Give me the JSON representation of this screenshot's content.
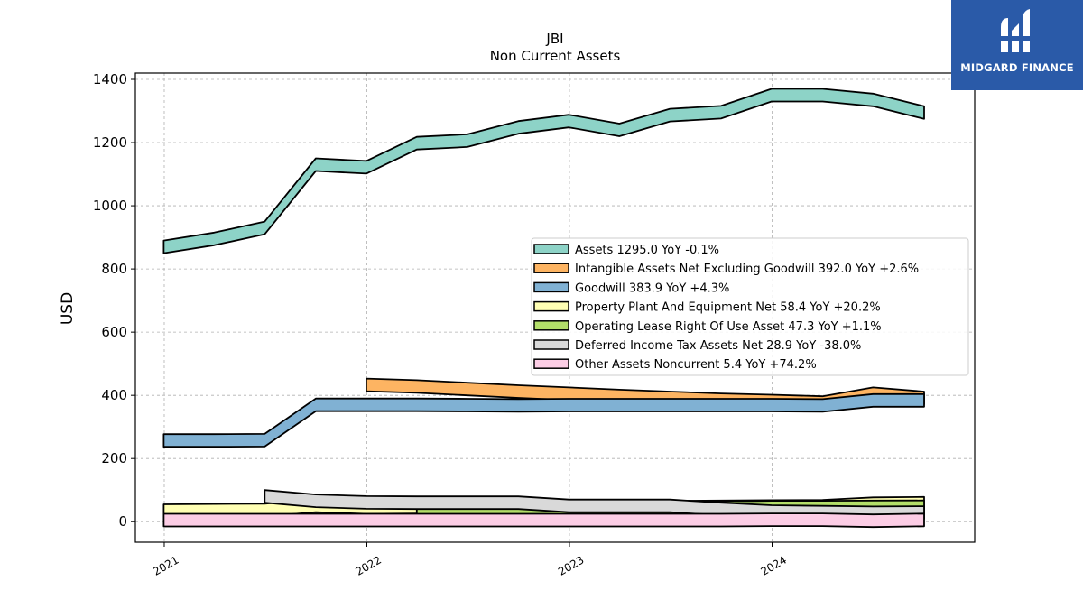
{
  "brand": {
    "name": "MIDGARD FINANCE",
    "bg_color": "#2a5aa8"
  },
  "chart_data": {
    "type": "area",
    "title": "JBI",
    "subtitle": "Non Current  Assets",
    "xlabel": "",
    "ylabel": "USD",
    "xlim": [
      "2020-11-10",
      "2024-12-31"
    ],
    "ylim": [
      -65,
      1420
    ],
    "yticks": [
      0,
      200,
      400,
      600,
      800,
      1000,
      1200,
      1400
    ],
    "xticks": [
      "2021",
      "2022",
      "2023",
      "2024"
    ],
    "xtick_dates": [
      "2021-01-01",
      "2022-01-01",
      "2023-01-01",
      "2024-01-01"
    ],
    "grid": true,
    "legend_position": "center-right",
    "series": [
      {
        "name": "Assets",
        "legend": "Assets  1295.0 YoY -0.1%",
        "color": "#8dd3c7",
        "points": [
          [
            "2020-12-31",
            870
          ],
          [
            "2021-04-01",
            895
          ],
          [
            "2021-07-01",
            930
          ],
          [
            "2021-10-01",
            1130
          ],
          [
            "2021-12-31",
            1122
          ],
          [
            "2022-04-01",
            1198
          ],
          [
            "2022-07-01",
            1206
          ],
          [
            "2022-10-01",
            1248
          ],
          [
            "2022-12-31",
            1268
          ],
          [
            "2023-04-01",
            1240
          ],
          [
            "2023-07-01",
            1287
          ],
          [
            "2023-10-01",
            1296
          ],
          [
            "2023-12-31",
            1350
          ],
          [
            "2024-04-01",
            1350
          ],
          [
            "2024-07-01",
            1335
          ],
          [
            "2024-10-01",
            1295
          ]
        ]
      },
      {
        "name": "Intangible Assets Net Excluding Goodwill",
        "legend": "Intangible Assets Net Excluding Goodwill  392.0 YoY +2.6%",
        "color": "#fdb462",
        "points": [
          [
            "2021-12-31",
            433
          ],
          [
            "2022-04-01",
            428
          ],
          [
            "2022-07-01",
            420
          ],
          [
            "2022-10-01",
            412
          ],
          [
            "2022-12-31",
            405
          ],
          [
            "2023-04-01",
            398
          ],
          [
            "2023-07-01",
            392
          ],
          [
            "2023-10-01",
            386
          ],
          [
            "2023-12-31",
            382
          ],
          [
            "2024-04-01",
            377
          ],
          [
            "2024-07-01",
            405
          ],
          [
            "2024-10-01",
            392
          ]
        ]
      },
      {
        "name": "Goodwill",
        "legend": "Goodwill  383.9 YoY +4.3%",
        "color": "#80b1d3",
        "points": [
          [
            "2020-12-31",
            257
          ],
          [
            "2021-04-01",
            257
          ],
          [
            "2021-07-01",
            258
          ],
          [
            "2021-10-01",
            370
          ],
          [
            "2021-12-31",
            370
          ],
          [
            "2022-04-01",
            370
          ],
          [
            "2022-07-01",
            369
          ],
          [
            "2022-10-01",
            368
          ],
          [
            "2022-12-31",
            369
          ],
          [
            "2023-04-01",
            369
          ],
          [
            "2023-07-01",
            369
          ],
          [
            "2023-10-01",
            369
          ],
          [
            "2023-12-31",
            369
          ],
          [
            "2024-04-01",
            368
          ],
          [
            "2024-07-01",
            384
          ],
          [
            "2024-10-01",
            383.9
          ]
        ]
      },
      {
        "name": "Property Plant And Equipment Net",
        "legend": "Property Plant And Equipment Net  58.4 YoY +20.2%",
        "color": "#ffffb3",
        "points": [
          [
            "2020-12-31",
            35
          ],
          [
            "2021-04-01",
            36
          ],
          [
            "2021-07-01",
            37
          ],
          [
            "2021-10-01",
            50
          ],
          [
            "2021-12-31",
            45
          ],
          [
            "2022-04-01",
            46
          ],
          [
            "2022-07-01",
            47
          ],
          [
            "2022-10-01",
            46
          ],
          [
            "2022-12-31",
            42
          ],
          [
            "2023-04-01",
            44
          ],
          [
            "2023-07-01",
            46
          ],
          [
            "2023-10-01",
            47
          ],
          [
            "2023-12-31",
            48
          ],
          [
            "2024-04-01",
            49
          ],
          [
            "2024-07-01",
            57
          ],
          [
            "2024-10-01",
            58.4
          ]
        ]
      },
      {
        "name": "Operating Lease Right Of Use Asset",
        "legend": "Operating Lease Right Of Use Asset  47.3 YoY +1.1%",
        "color": "#b3de69",
        "points": [
          [
            "2022-04-01",
            40
          ],
          [
            "2022-07-01",
            40
          ],
          [
            "2022-10-01",
            42
          ],
          [
            "2022-12-31",
            32
          ],
          [
            "2023-04-01",
            33
          ],
          [
            "2023-07-01",
            34
          ],
          [
            "2023-10-01",
            44
          ],
          [
            "2023-12-31",
            46
          ],
          [
            "2024-04-01",
            46
          ],
          [
            "2024-07-01",
            47
          ],
          [
            "2024-10-01",
            47.3
          ]
        ]
      },
      {
        "name": "Deferred Income Tax Assets Net",
        "legend": "Deferred Income Tax Assets Net  28.9 YoY -38.0%",
        "color": "#d9d9d9",
        "points": [
          [
            "2021-07-01",
            80
          ],
          [
            "2021-10-01",
            66
          ],
          [
            "2021-12-31",
            61
          ],
          [
            "2022-04-01",
            60
          ],
          [
            "2022-07-01",
            60
          ],
          [
            "2022-10-01",
            60
          ],
          [
            "2022-12-31",
            50
          ],
          [
            "2023-04-01",
            50
          ],
          [
            "2023-07-01",
            50
          ],
          [
            "2023-10-01",
            40
          ],
          [
            "2023-12-31",
            32
          ],
          [
            "2024-04-01",
            30
          ],
          [
            "2024-07-01",
            28
          ],
          [
            "2024-10-01",
            28.9
          ]
        ]
      },
      {
        "name": "Other Assets Noncurrent",
        "legend": "Other Assets Noncurrent  5.4 YoY +74.2%",
        "color": "#fccde5",
        "points": [
          [
            "2020-12-31",
            5
          ],
          [
            "2021-04-01",
            5
          ],
          [
            "2021-07-01",
            5
          ],
          [
            "2021-10-01",
            5
          ],
          [
            "2021-12-31",
            5
          ],
          [
            "2022-04-01",
            5
          ],
          [
            "2022-07-01",
            5
          ],
          [
            "2022-10-01",
            5
          ],
          [
            "2022-12-31",
            5
          ],
          [
            "2023-04-01",
            5
          ],
          [
            "2023-07-01",
            5
          ],
          [
            "2023-10-01",
            5
          ],
          [
            "2023-12-31",
            6
          ],
          [
            "2024-04-01",
            6
          ],
          [
            "2024-07-01",
            3
          ],
          [
            "2024-10-01",
            5.4
          ]
        ]
      }
    ]
  }
}
